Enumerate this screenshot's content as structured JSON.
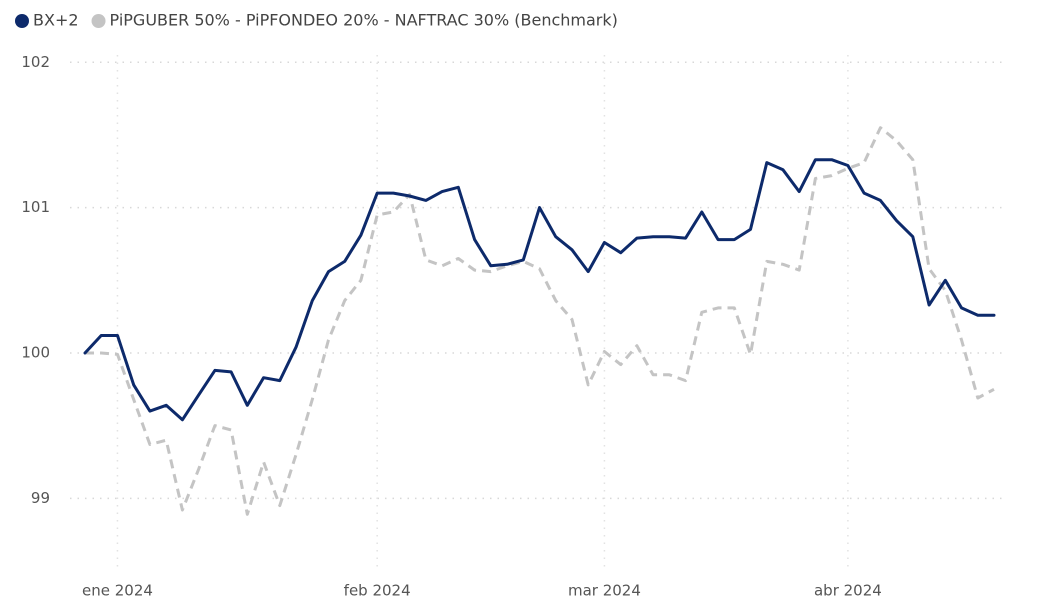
{
  "chart_data": {
    "type": "line",
    "categories": [
      null,
      null,
      "ene 2024",
      null,
      null,
      null,
      null,
      null,
      null,
      null,
      null,
      null,
      null,
      null,
      null,
      null,
      null,
      null,
      "feb 2024",
      null,
      null,
      null,
      null,
      null,
      null,
      null,
      null,
      null,
      null,
      null,
      null,
      null,
      "mar 2024",
      null,
      null,
      null,
      null,
      null,
      null,
      null,
      null,
      null,
      null,
      null,
      null,
      null,
      null,
      "abr 2024",
      null,
      null,
      null,
      null,
      null,
      null,
      null,
      null,
      null
    ],
    "series": [
      {
        "name": "BX+2",
        "color": "#0d2a6b",
        "dashed": false,
        "values": [
          100,
          100.12,
          100.12,
          99.78,
          99.6,
          99.64,
          99.54,
          99.71,
          99.88,
          99.87,
          99.64,
          99.83,
          99.81,
          100.04,
          100.36,
          100.56,
          100.63,
          100.81,
          101.1,
          101.1,
          101.08,
          101.05,
          101.11,
          101.14,
          100.78,
          100.6,
          100.61,
          100.64,
          101.0,
          100.8,
          100.71,
          100.56,
          100.76,
          100.69,
          100.79,
          100.8,
          100.8,
          100.79,
          100.97,
          100.78,
          100.78,
          100.85,
          101.31,
          101.26,
          101.11,
          101.33,
          101.33,
          101.29,
          101.1,
          101.05,
          100.91,
          100.8,
          100.33,
          100.5,
          100.31,
          100.26,
          100.26
        ]
      },
      {
        "name": "PiPGUBER 50% - PiPFONDEO 20% - NAFTRAC 30% (Benchmark)",
        "color": "#c4c4c4",
        "dashed": true,
        "values": [
          100,
          100,
          99.99,
          99.68,
          99.37,
          99.4,
          98.92,
          99.2,
          99.5,
          99.47,
          98.89,
          99.25,
          98.95,
          99.3,
          99.68,
          100.09,
          100.36,
          100.5,
          100.95,
          100.97,
          101.09,
          100.64,
          100.6,
          100.65,
          100.57,
          100.56,
          100.6,
          100.63,
          100.58,
          100.36,
          100.23,
          99.78,
          100.01,
          99.92,
          100.05,
          99.85,
          99.85,
          99.81,
          100.28,
          100.31,
          100.31,
          99.99,
          100.63,
          100.61,
          100.57,
          101.2,
          101.22,
          101.27,
          101.31,
          101.55,
          101.46,
          101.33,
          100.58,
          100.43,
          100.09,
          99.69,
          99.75
        ]
      }
    ],
    "ylim": [
      98.5,
      102.05
    ],
    "yticks": [
      99,
      100,
      101,
      102
    ],
    "grid": true
  }
}
